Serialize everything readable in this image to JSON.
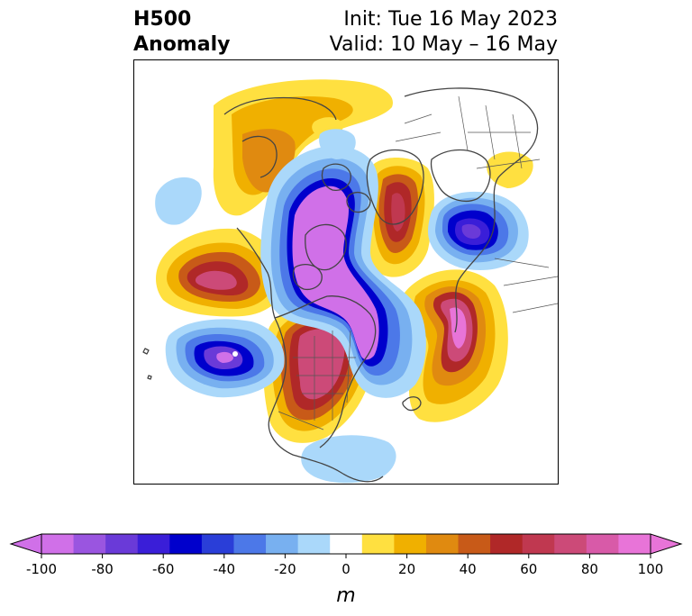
{
  "title": {
    "left_line1": "H500",
    "left_line2": "Anomaly",
    "right_line1": "Init: Tue 16 May 2023",
    "right_line2": "Valid: 10 May – 16 May"
  },
  "colorbar": {
    "label": "m",
    "extend": "both",
    "tick_labels": [
      "-100",
      "-80",
      "-60",
      "-40",
      "-20",
      "0",
      "20",
      "40",
      "60",
      "80",
      "100"
    ],
    "levels": [
      -100,
      -90,
      -80,
      -70,
      -60,
      -50,
      -40,
      -30,
      -20,
      -10,
      10,
      20,
      30,
      40,
      50,
      60,
      70,
      80,
      90,
      100
    ],
    "colors": [
      "#d070e8",
      "#9a55e0",
      "#6a3ad8",
      "#3a1ed8",
      "#0000cc",
      "#2a3ed8",
      "#4c78e8",
      "#78b0f0",
      "#aad8fa",
      "#ffffff",
      "#ffe040",
      "#f0b000",
      "#e08a10",
      "#c85a18",
      "#b02828",
      "#c03850",
      "#cc4a78",
      "#d85aa8",
      "#e874d8"
    ],
    "under_color": "#d070e8",
    "over_color": "#e874d8"
  }
}
